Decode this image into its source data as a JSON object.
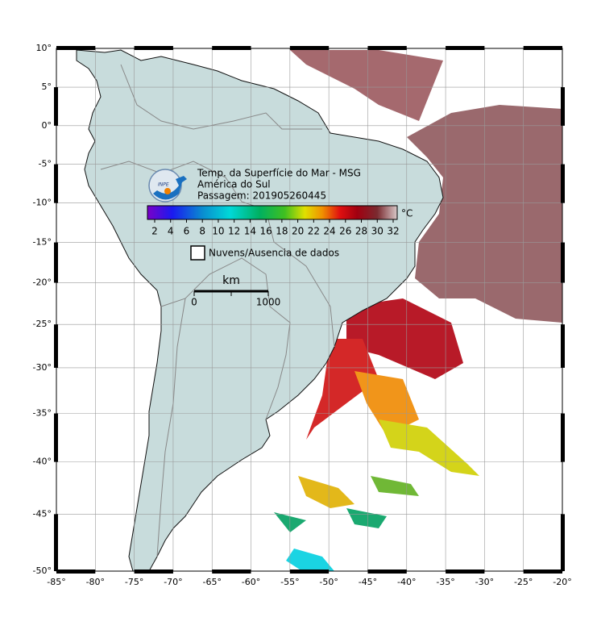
{
  "title": {
    "lines": [
      "Temp. da Superfície do Mar - MSG",
      "América do Sul",
      "Passagem: 201905260445"
    ]
  },
  "logo": {
    "text": "INPE"
  },
  "colorbar": {
    "unit": "°C",
    "ticks": [
      2,
      4,
      6,
      8,
      10,
      12,
      14,
      16,
      18,
      20,
      22,
      24,
      26,
      28,
      30,
      32
    ]
  },
  "legend": {
    "no_data": "Nuvens/Ausencia de dados"
  },
  "scale_bar": {
    "unit": "km",
    "ticks": [
      0,
      1000
    ]
  },
  "axes": {
    "lon_ticks": [
      {
        "value": -85,
        "label": "-85°"
      },
      {
        "value": -80,
        "label": "-80°"
      },
      {
        "value": -75,
        "label": "-75°"
      },
      {
        "value": -70,
        "label": "-70°"
      },
      {
        "value": -65,
        "label": "-65°"
      },
      {
        "value": -60,
        "label": "-60°"
      },
      {
        "value": -55,
        "label": "-55°"
      },
      {
        "value": -50,
        "label": "-50°"
      },
      {
        "value": -45,
        "label": "-45°"
      },
      {
        "value": -40,
        "label": "-40°"
      },
      {
        "value": -35,
        "label": "-35°"
      },
      {
        "value": -30,
        "label": "-30°"
      },
      {
        "value": -25,
        "label": "-25°"
      },
      {
        "value": -20,
        "label": "-20°"
      }
    ],
    "lat_ticks": [
      {
        "value": 10,
        "label": "10°"
      },
      {
        "value": 5,
        "label": "5°"
      },
      {
        "value": 0,
        "label": "0°"
      },
      {
        "value": -5,
        "label": "-5°"
      },
      {
        "value": -10,
        "label": "-10°"
      },
      {
        "value": -15,
        "label": "-15°"
      },
      {
        "value": -20,
        "label": "-20°"
      },
      {
        "value": -25,
        "label": "-25°"
      },
      {
        "value": -30,
        "label": "-30°"
      },
      {
        "value": -35,
        "label": "-35°"
      },
      {
        "value": -40,
        "label": "-40°"
      },
      {
        "value": -45,
        "label": "-45°"
      },
      {
        "value": -50,
        "label": "-50°"
      }
    ]
  }
}
